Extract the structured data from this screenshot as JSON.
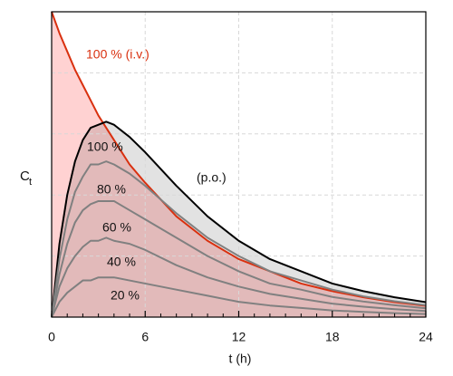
{
  "chart_data": {
    "type": "line",
    "xlabel": "t (h)",
    "ylabel": "C",
    "ylabel_subscript": "t",
    "xlim": [
      0,
      24
    ],
    "ylim": [
      0,
      1
    ],
    "xticks": [
      0,
      6,
      12,
      18,
      24
    ],
    "xminorticks": [
      1,
      2,
      3,
      4,
      5,
      7,
      8,
      9,
      10,
      11,
      13,
      14,
      15,
      16,
      17,
      19,
      20,
      21,
      22,
      23
    ],
    "yticks": [
      0.2,
      0.4,
      0.6,
      0.8
    ],
    "grid": true,
    "x": [
      0,
      0.5,
      1,
      1.5,
      2,
      2.5,
      3,
      3.5,
      4,
      5,
      6,
      8,
      10,
      12,
      14,
      16,
      18,
      20,
      22,
      24
    ],
    "series": [
      {
        "name": "100 % (i.v.)",
        "color": "#d9300f",
        "fill": "#ffd2d2",
        "values": [
          1,
          0.93,
          0.87,
          0.81,
          0.76,
          0.71,
          0.66,
          0.62,
          0.58,
          0.5,
          0.44,
          0.33,
          0.25,
          0.19,
          0.15,
          0.11,
          0.085,
          0.065,
          0.049,
          0.037
        ]
      },
      {
        "name": "100 %",
        "color": "#000000",
        "fill": "#e2e2e2",
        "values": [
          0,
          0.24,
          0.4,
          0.51,
          0.58,
          0.62,
          0.63,
          0.64,
          0.63,
          0.59,
          0.54,
          0.43,
          0.33,
          0.25,
          0.19,
          0.15,
          0.11,
          0.085,
          0.065,
          0.049
        ]
      },
      {
        "name": "80 %",
        "color": "#808080",
        "values": [
          0,
          0.19,
          0.32,
          0.41,
          0.46,
          0.5,
          0.5,
          0.51,
          0.5,
          0.47,
          0.43,
          0.34,
          0.26,
          0.2,
          0.15,
          0.12,
          0.09,
          0.068,
          0.052,
          0.039
        ]
      },
      {
        "name": "60 %",
        "color": "#808080",
        "values": [
          0,
          0.14,
          0.24,
          0.31,
          0.35,
          0.37,
          0.38,
          0.38,
          0.38,
          0.35,
          0.32,
          0.26,
          0.2,
          0.15,
          0.11,
          0.09,
          0.066,
          0.051,
          0.039,
          0.029
        ]
      },
      {
        "name": "40 %",
        "color": "#808080",
        "values": [
          0,
          0.1,
          0.16,
          0.2,
          0.23,
          0.25,
          0.25,
          0.26,
          0.25,
          0.24,
          0.22,
          0.17,
          0.13,
          0.1,
          0.076,
          0.06,
          0.044,
          0.034,
          0.026,
          0.02
        ]
      },
      {
        "name": "20 %",
        "color": "#808080",
        "values": [
          0,
          0.05,
          0.08,
          0.1,
          0.12,
          0.12,
          0.13,
          0.13,
          0.13,
          0.12,
          0.11,
          0.09,
          0.07,
          0.05,
          0.038,
          0.03,
          0.022,
          0.017,
          0.013,
          0.01
        ]
      }
    ],
    "annotations": [
      "(p.o.)"
    ]
  }
}
